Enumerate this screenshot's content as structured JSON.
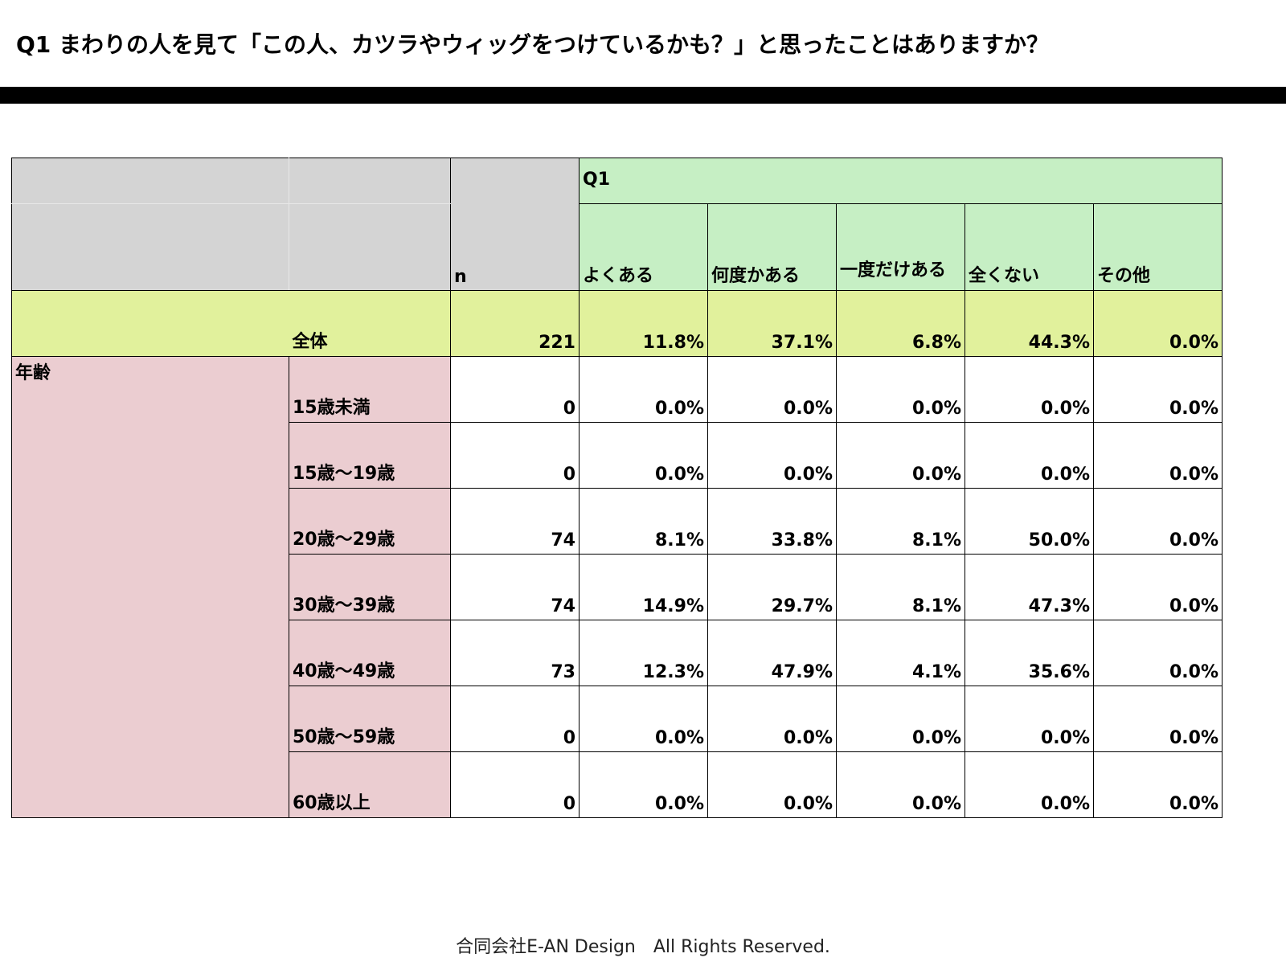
{
  "title": "Q1 まわりの人を見て「この人、カツラやウィッグをつけているかも？」と思ったことはありますか？",
  "table": {
    "n_label": "n",
    "question_label": "Q1",
    "answers": [
      "よくある",
      "何度かある",
      "一度だけある",
      "全くない",
      "その他"
    ],
    "total": {
      "label": "全体",
      "n": "221",
      "values": [
        "11.8%",
        "37.1%",
        "6.8%",
        "44.3%",
        "0.0%"
      ]
    },
    "group_label": "年齢",
    "rows": [
      {
        "label": "15歳未満",
        "n": "0",
        "values": [
          "0.0%",
          "0.0%",
          "0.0%",
          "0.0%",
          "0.0%"
        ]
      },
      {
        "label": "15歳〜19歳",
        "n": "0",
        "values": [
          "0.0%",
          "0.0%",
          "0.0%",
          "0.0%",
          "0.0%"
        ]
      },
      {
        "label": "20歳〜29歳",
        "n": "74",
        "values": [
          "8.1%",
          "33.8%",
          "8.1%",
          "50.0%",
          "0.0%"
        ]
      },
      {
        "label": "30歳〜39歳",
        "n": "74",
        "values": [
          "14.9%",
          "29.7%",
          "8.1%",
          "47.3%",
          "0.0%"
        ]
      },
      {
        "label": "40歳〜49歳",
        "n": "73",
        "values": [
          "12.3%",
          "47.9%",
          "4.1%",
          "35.6%",
          "0.0%"
        ]
      },
      {
        "label": "50歳〜59歳",
        "n": "0",
        "values": [
          "0.0%",
          "0.0%",
          "0.0%",
          "0.0%",
          "0.0%"
        ]
      },
      {
        "label": "60歳以上",
        "n": "0",
        "values": [
          "0.0%",
          "0.0%",
          "0.0%",
          "0.0%",
          "0.0%"
        ]
      }
    ]
  },
  "colors": {
    "header_gray": "#d4d4d4",
    "question_green": "#c6efc4",
    "total_yellow": "#e1f19c",
    "age_pink": "#ebcdd1"
  },
  "footer": "合同会社E-AN Design　All Rights Reserved."
}
